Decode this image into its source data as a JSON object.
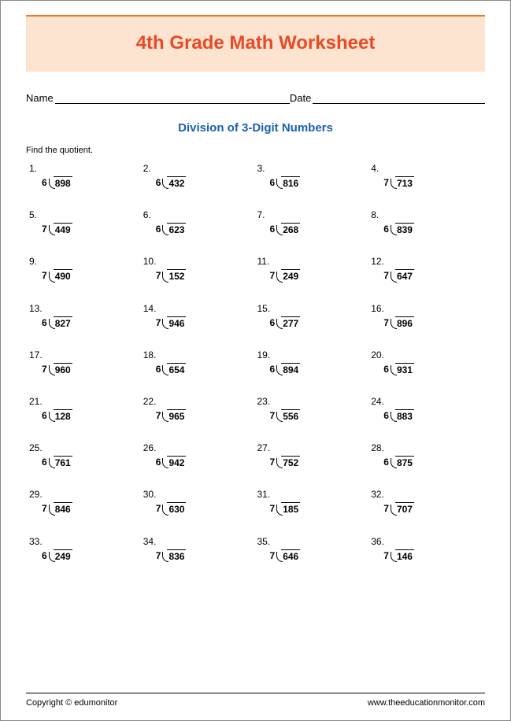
{
  "title": "4th Grade Math Worksheet",
  "title_color": "#e84a27",
  "banner_bg": "#fce4d0",
  "top_rule_color": "#f07820",
  "name_label": "Name",
  "date_label": "Date",
  "subtitle": "Division of 3-Digit Numbers",
  "subtitle_color": "#1a5fb4",
  "instruction": "Find the quotient.",
  "problems": [
    {
      "n": "1.",
      "divisor": "6",
      "dividend": "898"
    },
    {
      "n": "2.",
      "divisor": "6",
      "dividend": "432"
    },
    {
      "n": "3.",
      "divisor": "6",
      "dividend": "816"
    },
    {
      "n": "4.",
      "divisor": "7",
      "dividend": "713"
    },
    {
      "n": "5.",
      "divisor": "7",
      "dividend": "449"
    },
    {
      "n": "6.",
      "divisor": "6",
      "dividend": "623"
    },
    {
      "n": "7.",
      "divisor": "6",
      "dividend": "268"
    },
    {
      "n": "8.",
      "divisor": "6",
      "dividend": "839"
    },
    {
      "n": "9.",
      "divisor": "7",
      "dividend": "490"
    },
    {
      "n": "10.",
      "divisor": "7",
      "dividend": "152"
    },
    {
      "n": "11.",
      "divisor": "7",
      "dividend": "249"
    },
    {
      "n": "12.",
      "divisor": "7",
      "dividend": "647"
    },
    {
      "n": "13.",
      "divisor": "6",
      "dividend": "827"
    },
    {
      "n": "14.",
      "divisor": "7",
      "dividend": "946"
    },
    {
      "n": "15.",
      "divisor": "6",
      "dividend": "277"
    },
    {
      "n": "16.",
      "divisor": "7",
      "dividend": "896"
    },
    {
      "n": "17.",
      "divisor": "7",
      "dividend": "960"
    },
    {
      "n": "18.",
      "divisor": "6",
      "dividend": "654"
    },
    {
      "n": "19.",
      "divisor": "6",
      "dividend": "894"
    },
    {
      "n": "20.",
      "divisor": "6",
      "dividend": "931"
    },
    {
      "n": "21.",
      "divisor": "6",
      "dividend": "128"
    },
    {
      "n": "22.",
      "divisor": "7",
      "dividend": "965"
    },
    {
      "n": "23.",
      "divisor": "7",
      "dividend": "556"
    },
    {
      "n": "24.",
      "divisor": "6",
      "dividend": "883"
    },
    {
      "n": "25.",
      "divisor": "6",
      "dividend": "761"
    },
    {
      "n": "26.",
      "divisor": "6",
      "dividend": "942"
    },
    {
      "n": "27.",
      "divisor": "7",
      "dividend": "752"
    },
    {
      "n": "28.",
      "divisor": "6",
      "dividend": "875"
    },
    {
      "n": "29.",
      "divisor": "7",
      "dividend": "846"
    },
    {
      "n": "30.",
      "divisor": "7",
      "dividend": "630"
    },
    {
      "n": "31.",
      "divisor": "7",
      "dividend": "185"
    },
    {
      "n": "32.",
      "divisor": "7",
      "dividend": "707"
    },
    {
      "n": "33.",
      "divisor": "6",
      "dividend": "249"
    },
    {
      "n": "34.",
      "divisor": "7",
      "dividend": "836"
    },
    {
      "n": "35.",
      "divisor": "7",
      "dividend": "646"
    },
    {
      "n": "36.",
      "divisor": "7",
      "dividend": "146"
    }
  ],
  "footer": {
    "copyright": "Copyright © edumonitor",
    "url": "www.theeducationmonitor.com"
  }
}
